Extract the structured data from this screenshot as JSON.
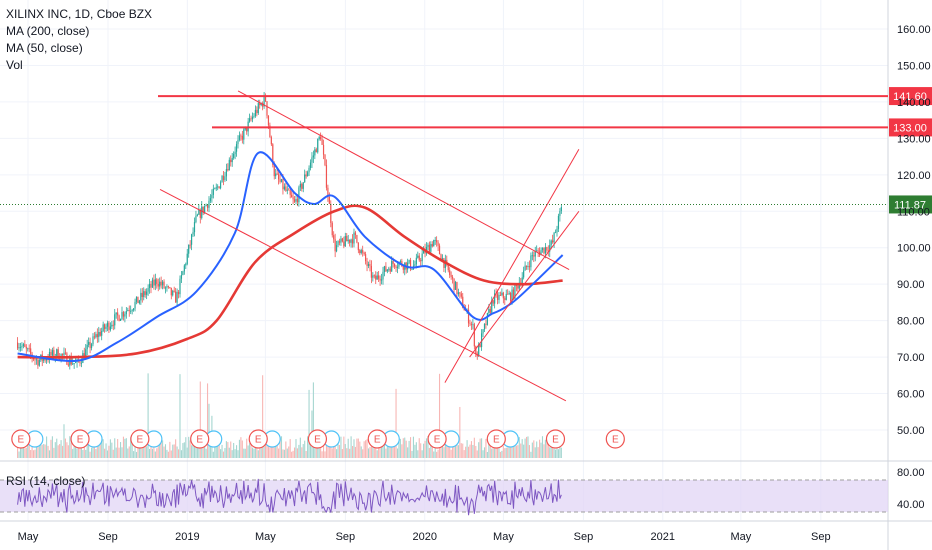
{
  "legend": {
    "title": "XILINX INC, 1D, Cboe BZX",
    "ma200": "MA (200, close)",
    "ma50": "MA (50, close)",
    "vol": "Vol"
  },
  "rsi_label": "RSI (14, close)",
  "colors": {
    "up_candle": "#26a69a",
    "down_candle": "#ef5350",
    "ma200": "#e53935",
    "ma50": "#2962ff",
    "trendline": "#f23645",
    "rsi": "#7e57c2",
    "rsi_band": "#e1d5f5",
    "last_price": "#2e7d32"
  },
  "chart_data": {
    "type": "line",
    "title": "XILINX INC, 1D, Cboe BZX",
    "x_tick_labels": [
      "May",
      "Sep",
      "2019",
      "May",
      "Sep",
      "2020",
      "May",
      "Sep",
      "2021",
      "May",
      "Sep"
    ],
    "y_tick_labels": [
      "160.00",
      "150.00",
      "140.00",
      "130.00",
      "120.00",
      "110.00",
      "100.00",
      "90.00",
      "80.00",
      "70.00",
      "60.00",
      "50.00"
    ],
    "ylim": [
      45,
      163
    ],
    "price_levels": [
      {
        "label": "141.60",
        "value": 141.6
      },
      {
        "label": "133.00",
        "value": 133.0
      }
    ],
    "last_price": {
      "label": "111.87",
      "value": 111.87
    },
    "series": [
      {
        "name": "XILINX INC",
        "x": [
          "2018-04-15",
          "2018-05-15",
          "2018-06-15",
          "2018-07-15",
          "2018-08-15",
          "2018-09-15",
          "2018-10-15",
          "2018-11-15",
          "2018-12-15",
          "2019-01-15",
          "2019-02-15",
          "2019-03-15",
          "2019-04-15",
          "2019-05-01",
          "2019-05-15",
          "2019-06-15",
          "2019-07-15",
          "2019-07-25",
          "2019-08-15",
          "2019-09-15",
          "2019-10-15",
          "2019-11-15",
          "2019-12-15",
          "2020-01-15",
          "2020-02-15",
          "2020-03-15",
          "2020-03-20",
          "2020-04-15",
          "2020-05-15",
          "2020-06-15",
          "2020-07-15",
          "2020-07-31"
        ],
        "values": [
          74,
          69,
          71,
          68,
          76,
          81,
          85,
          91,
          86,
          108,
          116,
          127,
          137,
          141,
          120,
          112,
          126,
          131,
          100,
          103,
          91,
          96,
          95,
          102,
          90,
          78,
          70,
          86,
          87,
          98,
          101,
          112
        ]
      },
      {
        "name": "MA (200, close)",
        "x": [
          "2018-04-15",
          "2018-07-15",
          "2018-10-15",
          "2019-01-01",
          "2019-02-15",
          "2019-04-15",
          "2019-06-15",
          "2019-08-15",
          "2019-10-01",
          "2019-12-01",
          "2020-02-01",
          "2020-04-01",
          "2020-06-01",
          "2020-07-31"
        ],
        "values": [
          70,
          70,
          71,
          75,
          80,
          96,
          104,
          110,
          111,
          103,
          96,
          91,
          90,
          91
        ]
      },
      {
        "name": "MA (50, close)",
        "x": [
          "2018-04-15",
          "2018-07-15",
          "2018-09-15",
          "2018-11-15",
          "2019-01-15",
          "2019-03-15",
          "2019-04-20",
          "2019-06-15",
          "2019-07-15",
          "2019-08-15",
          "2019-10-01",
          "2019-12-01",
          "2020-01-15",
          "2020-03-15",
          "2020-04-15",
          "2020-05-15",
          "2020-06-15",
          "2020-07-31"
        ],
        "values": [
          71,
          69,
          74,
          81,
          88,
          104,
          126,
          115,
          112,
          114,
          103,
          95,
          94,
          81,
          82,
          85,
          90,
          98
        ]
      }
    ],
    "trendlines": [
      {
        "from": [
          "2019-03-20",
          143
        ],
        "to": [
          "2020-08-10",
          94
        ]
      },
      {
        "from": [
          "2018-11-20",
          116
        ],
        "to": [
          "2020-08-05",
          58
        ]
      },
      {
        "from": [
          "2020-02-01",
          63
        ],
        "to": [
          "2020-08-25",
          127
        ]
      },
      {
        "from": [
          "2020-03-10",
          70
        ],
        "to": [
          "2020-08-25",
          110
        ]
      }
    ],
    "earnings_markers": [
      "2018-04-20",
      "2018-07-20",
      "2018-10-20",
      "2019-01-20",
      "2019-04-20",
      "2019-07-20",
      "2019-10-20",
      "2020-01-20",
      "2020-04-20",
      "2020-07-20",
      "2020-10-20"
    ],
    "earnings_label": "E",
    "rsi": {
      "ylim": [
        20,
        90
      ],
      "upper": 70,
      "lower": 30,
      "y_tick_labels": [
        "80.00",
        "40.00"
      ]
    }
  }
}
